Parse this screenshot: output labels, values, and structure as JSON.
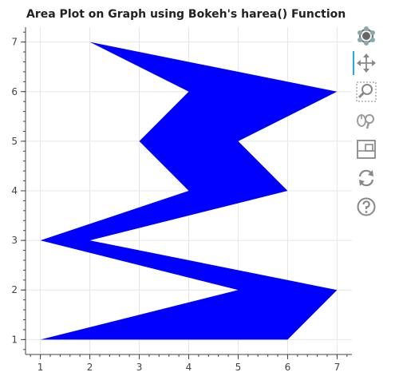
{
  "chart_title": "Area Plot on Graph using Bokeh's harea() Function",
  "colors": {
    "fill": "#0000ff",
    "grid": "#e5e5e5",
    "axis": "#444444",
    "toolbar_icon": "#888888",
    "toolbar_active": "#26aae1"
  },
  "toolbar": {
    "tools": [
      {
        "name": "bokeh-logo-icon",
        "active": false
      },
      {
        "name": "pan-tool-icon",
        "active": true
      },
      {
        "name": "box-zoom-tool-icon",
        "active": false
      },
      {
        "name": "wheel-zoom-tool-icon",
        "active": false
      },
      {
        "name": "save-tool-icon",
        "active": false
      },
      {
        "name": "reset-tool-icon",
        "active": false
      },
      {
        "name": "help-tool-icon",
        "active": false
      }
    ]
  },
  "chart_data": {
    "type": "area",
    "orientation": "horizontal",
    "title": "Area Plot on Graph using Bokeh's harea() Function",
    "xlabel": "",
    "ylabel": "",
    "xlim": [
      0.7,
      7.3
    ],
    "ylim": [
      0.7,
      7.3
    ],
    "x_ticks": [
      1,
      2,
      3,
      4,
      5,
      6,
      7
    ],
    "y_ticks": [
      1,
      2,
      3,
      4,
      5,
      6,
      7
    ],
    "grid": true,
    "series": [
      {
        "y": [
          1,
          2,
          3,
          4,
          5,
          6,
          7
        ],
        "x1": [
          1,
          5,
          1,
          4,
          3,
          4,
          2
        ],
        "x2": [
          6,
          7,
          2,
          6,
          5,
          7,
          2
        ]
      }
    ]
  }
}
